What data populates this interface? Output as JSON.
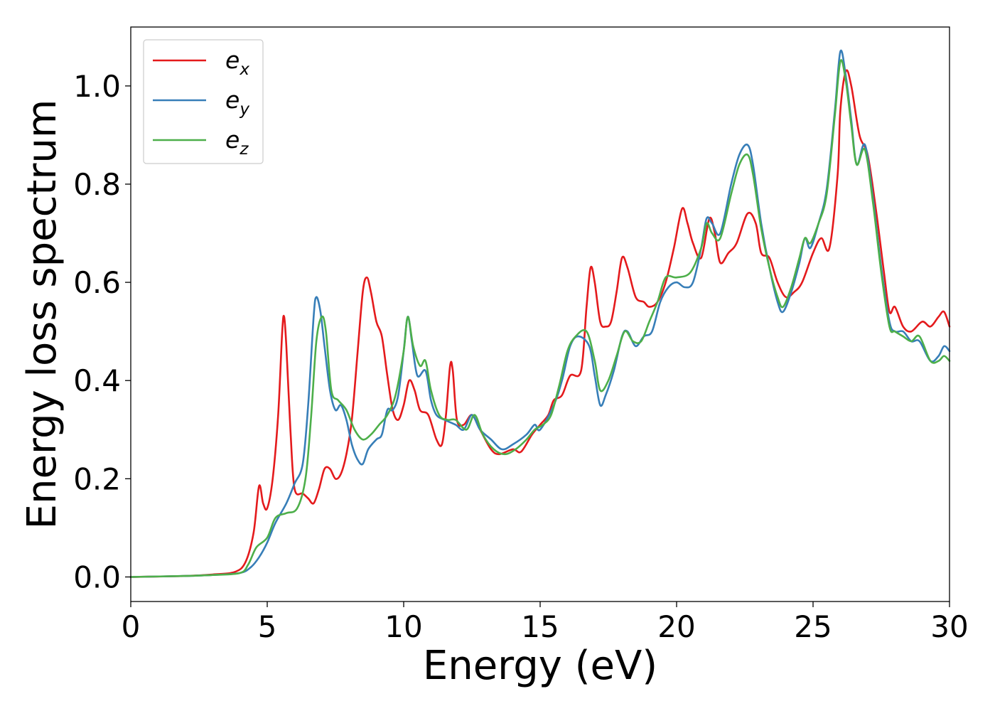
{
  "chart_data": {
    "type": "line",
    "title": "",
    "xlabel": "Energy (eV)",
    "ylabel": "Energy loss spectrum",
    "xlim": [
      0,
      30
    ],
    "ylim": [
      -0.05,
      1.12
    ],
    "xticks": [
      0,
      5,
      10,
      15,
      20,
      25,
      30
    ],
    "yticks": [
      0.0,
      0.2,
      0.4,
      0.6,
      0.8,
      1.0
    ],
    "xtick_labels": [
      "0",
      "5",
      "10",
      "15",
      "20",
      "25",
      "30"
    ],
    "ytick_labels": [
      "0.0",
      "0.2",
      "0.4",
      "0.6",
      "0.8",
      "1.0"
    ],
    "grid": false,
    "legend_position": "top-left",
    "series": [
      {
        "name": "e_x",
        "legend_base": "e",
        "legend_sub": "x",
        "color": "#e41a1c",
        "points": [
          [
            0,
            0
          ],
          [
            2,
            0.002
          ],
          [
            3,
            0.005
          ],
          [
            3.8,
            0.01
          ],
          [
            4.2,
            0.03
          ],
          [
            4.5,
            0.09
          ],
          [
            4.7,
            0.185
          ],
          [
            4.85,
            0.15
          ],
          [
            5.0,
            0.14
          ],
          [
            5.2,
            0.2
          ],
          [
            5.4,
            0.33
          ],
          [
            5.55,
            0.5
          ],
          [
            5.62,
            0.53
          ],
          [
            5.7,
            0.47
          ],
          [
            5.85,
            0.3
          ],
          [
            6.0,
            0.18
          ],
          [
            6.3,
            0.17
          ],
          [
            6.5,
            0.16
          ],
          [
            6.7,
            0.15
          ],
          [
            6.9,
            0.18
          ],
          [
            7.1,
            0.22
          ],
          [
            7.3,
            0.22
          ],
          [
            7.5,
            0.2
          ],
          [
            7.7,
            0.21
          ],
          [
            7.9,
            0.25
          ],
          [
            8.1,
            0.32
          ],
          [
            8.3,
            0.45
          ],
          [
            8.5,
            0.58
          ],
          [
            8.65,
            0.61
          ],
          [
            8.8,
            0.58
          ],
          [
            9.0,
            0.52
          ],
          [
            9.2,
            0.49
          ],
          [
            9.4,
            0.41
          ],
          [
            9.6,
            0.34
          ],
          [
            9.8,
            0.32
          ],
          [
            10.0,
            0.35
          ],
          [
            10.2,
            0.4
          ],
          [
            10.4,
            0.38
          ],
          [
            10.6,
            0.34
          ],
          [
            10.9,
            0.33
          ],
          [
            11.2,
            0.28
          ],
          [
            11.4,
            0.27
          ],
          [
            11.55,
            0.33
          ],
          [
            11.7,
            0.43
          ],
          [
            11.8,
            0.42
          ],
          [
            11.95,
            0.32
          ],
          [
            12.2,
            0.31
          ],
          [
            12.5,
            0.33
          ],
          [
            12.8,
            0.3
          ],
          [
            13.2,
            0.26
          ],
          [
            13.5,
            0.25
          ],
          [
            14.0,
            0.26
          ],
          [
            14.3,
            0.255
          ],
          [
            14.7,
            0.29
          ],
          [
            15.0,
            0.31
          ],
          [
            15.3,
            0.33
          ],
          [
            15.5,
            0.36
          ],
          [
            15.8,
            0.37
          ],
          [
            16.1,
            0.41
          ],
          [
            16.5,
            0.42
          ],
          [
            16.7,
            0.55
          ],
          [
            16.85,
            0.63
          ],
          [
            17.0,
            0.6
          ],
          [
            17.2,
            0.52
          ],
          [
            17.4,
            0.51
          ],
          [
            17.6,
            0.52
          ],
          [
            17.8,
            0.58
          ],
          [
            18.0,
            0.65
          ],
          [
            18.2,
            0.63
          ],
          [
            18.5,
            0.57
          ],
          [
            18.8,
            0.56
          ],
          [
            19.0,
            0.55
          ],
          [
            19.3,
            0.56
          ],
          [
            19.6,
            0.6
          ],
          [
            19.9,
            0.67
          ],
          [
            20.2,
            0.75
          ],
          [
            20.4,
            0.72
          ],
          [
            20.6,
            0.68
          ],
          [
            20.9,
            0.65
          ],
          [
            21.2,
            0.73
          ],
          [
            21.4,
            0.7
          ],
          [
            21.6,
            0.64
          ],
          [
            21.9,
            0.66
          ],
          [
            22.2,
            0.68
          ],
          [
            22.6,
            0.74
          ],
          [
            22.9,
            0.72
          ],
          [
            23.1,
            0.66
          ],
          [
            23.4,
            0.65
          ],
          [
            23.7,
            0.6
          ],
          [
            24.0,
            0.57
          ],
          [
            24.3,
            0.58
          ],
          [
            24.6,
            0.6
          ],
          [
            25.0,
            0.66
          ],
          [
            25.3,
            0.69
          ],
          [
            25.6,
            0.67
          ],
          [
            25.9,
            0.82
          ],
          [
            26.0,
            0.95
          ],
          [
            26.2,
            1.03
          ],
          [
            26.4,
            1.0
          ],
          [
            26.7,
            0.9
          ],
          [
            27.0,
            0.86
          ],
          [
            27.3,
            0.75
          ],
          [
            27.6,
            0.62
          ],
          [
            27.8,
            0.54
          ],
          [
            28.0,
            0.55
          ],
          [
            28.3,
            0.51
          ],
          [
            28.6,
            0.5
          ],
          [
            29.0,
            0.52
          ],
          [
            29.3,
            0.51
          ],
          [
            29.6,
            0.53
          ],
          [
            29.8,
            0.54
          ],
          [
            30.0,
            0.51
          ]
        ]
      },
      {
        "name": "e_y",
        "legend_base": "e",
        "legend_sub": "y",
        "color": "#377eb8",
        "points": [
          [
            0,
            0
          ],
          [
            2,
            0.002
          ],
          [
            3,
            0.004
          ],
          [
            4,
            0.008
          ],
          [
            4.4,
            0.02
          ],
          [
            4.7,
            0.04
          ],
          [
            5.0,
            0.07
          ],
          [
            5.3,
            0.11
          ],
          [
            5.7,
            0.15
          ],
          [
            6.0,
            0.19
          ],
          [
            6.3,
            0.23
          ],
          [
            6.5,
            0.35
          ],
          [
            6.7,
            0.53
          ],
          [
            6.8,
            0.57
          ],
          [
            6.95,
            0.54
          ],
          [
            7.1,
            0.47
          ],
          [
            7.3,
            0.38
          ],
          [
            7.5,
            0.34
          ],
          [
            7.7,
            0.35
          ],
          [
            7.9,
            0.32
          ],
          [
            8.1,
            0.27
          ],
          [
            8.3,
            0.24
          ],
          [
            8.5,
            0.23
          ],
          [
            8.7,
            0.26
          ],
          [
            9.0,
            0.28
          ],
          [
            9.2,
            0.29
          ],
          [
            9.4,
            0.34
          ],
          [
            9.6,
            0.34
          ],
          [
            9.8,
            0.37
          ],
          [
            10.0,
            0.46
          ],
          [
            10.15,
            0.53
          ],
          [
            10.3,
            0.48
          ],
          [
            10.5,
            0.41
          ],
          [
            10.8,
            0.42
          ],
          [
            11.0,
            0.36
          ],
          [
            11.2,
            0.33
          ],
          [
            11.5,
            0.32
          ],
          [
            11.9,
            0.31
          ],
          [
            12.2,
            0.3
          ],
          [
            12.5,
            0.33
          ],
          [
            12.8,
            0.3
          ],
          [
            13.2,
            0.28
          ],
          [
            13.6,
            0.26
          ],
          [
            14.0,
            0.27
          ],
          [
            14.5,
            0.29
          ],
          [
            14.8,
            0.31
          ],
          [
            15.0,
            0.3
          ],
          [
            15.5,
            0.35
          ],
          [
            15.8,
            0.4
          ],
          [
            16.1,
            0.47
          ],
          [
            16.4,
            0.49
          ],
          [
            16.8,
            0.47
          ],
          [
            17.0,
            0.41
          ],
          [
            17.2,
            0.35
          ],
          [
            17.4,
            0.37
          ],
          [
            17.7,
            0.42
          ],
          [
            18.0,
            0.49
          ],
          [
            18.2,
            0.5
          ],
          [
            18.5,
            0.47
          ],
          [
            18.8,
            0.49
          ],
          [
            19.1,
            0.5
          ],
          [
            19.4,
            0.56
          ],
          [
            19.7,
            0.59
          ],
          [
            20.0,
            0.6
          ],
          [
            20.3,
            0.59
          ],
          [
            20.6,
            0.6
          ],
          [
            20.9,
            0.67
          ],
          [
            21.1,
            0.73
          ],
          [
            21.3,
            0.72
          ],
          [
            21.6,
            0.7
          ],
          [
            22.0,
            0.8
          ],
          [
            22.3,
            0.86
          ],
          [
            22.6,
            0.88
          ],
          [
            22.8,
            0.84
          ],
          [
            23.1,
            0.72
          ],
          [
            23.4,
            0.63
          ],
          [
            23.7,
            0.56
          ],
          [
            23.9,
            0.54
          ],
          [
            24.2,
            0.58
          ],
          [
            24.5,
            0.64
          ],
          [
            24.7,
            0.69
          ],
          [
            24.9,
            0.67
          ],
          [
            25.2,
            0.72
          ],
          [
            25.5,
            0.79
          ],
          [
            25.8,
            0.95
          ],
          [
            26.0,
            1.07
          ],
          [
            26.2,
            1.02
          ],
          [
            26.4,
            0.93
          ],
          [
            26.6,
            0.84
          ],
          [
            26.9,
            0.88
          ],
          [
            27.2,
            0.77
          ],
          [
            27.5,
            0.63
          ],
          [
            27.8,
            0.52
          ],
          [
            28.0,
            0.5
          ],
          [
            28.3,
            0.5
          ],
          [
            28.6,
            0.48
          ],
          [
            28.9,
            0.48
          ],
          [
            29.3,
            0.44
          ],
          [
            29.6,
            0.45
          ],
          [
            29.8,
            0.47
          ],
          [
            30.0,
            0.46
          ]
        ]
      },
      {
        "name": "e_z",
        "legend_base": "e",
        "legend_sub": "z",
        "color": "#4daf4a",
        "points": [
          [
            0,
            0
          ],
          [
            2,
            0.002
          ],
          [
            3,
            0.004
          ],
          [
            4,
            0.008
          ],
          [
            4.3,
            0.025
          ],
          [
            4.6,
            0.06
          ],
          [
            5.0,
            0.08
          ],
          [
            5.3,
            0.12
          ],
          [
            5.7,
            0.13
          ],
          [
            6.1,
            0.14
          ],
          [
            6.4,
            0.2
          ],
          [
            6.6,
            0.32
          ],
          [
            6.8,
            0.48
          ],
          [
            7.0,
            0.53
          ],
          [
            7.15,
            0.5
          ],
          [
            7.35,
            0.38
          ],
          [
            7.6,
            0.36
          ],
          [
            7.9,
            0.34
          ],
          [
            8.2,
            0.3
          ],
          [
            8.5,
            0.28
          ],
          [
            8.8,
            0.29
          ],
          [
            9.1,
            0.31
          ],
          [
            9.4,
            0.33
          ],
          [
            9.7,
            0.37
          ],
          [
            10.0,
            0.46
          ],
          [
            10.15,
            0.53
          ],
          [
            10.35,
            0.47
          ],
          [
            10.6,
            0.43
          ],
          [
            10.8,
            0.44
          ],
          [
            11.0,
            0.38
          ],
          [
            11.3,
            0.33
          ],
          [
            11.6,
            0.32
          ],
          [
            11.9,
            0.32
          ],
          [
            12.3,
            0.3
          ],
          [
            12.6,
            0.33
          ],
          [
            12.9,
            0.29
          ],
          [
            13.3,
            0.26
          ],
          [
            13.7,
            0.25
          ],
          [
            14.1,
            0.26
          ],
          [
            14.5,
            0.28
          ],
          [
            14.8,
            0.3
          ],
          [
            15.1,
            0.31
          ],
          [
            15.4,
            0.33
          ],
          [
            15.7,
            0.39
          ],
          [
            16.0,
            0.46
          ],
          [
            16.3,
            0.49
          ],
          [
            16.7,
            0.5
          ],
          [
            17.0,
            0.44
          ],
          [
            17.2,
            0.38
          ],
          [
            17.5,
            0.4
          ],
          [
            17.8,
            0.45
          ],
          [
            18.1,
            0.5
          ],
          [
            18.4,
            0.48
          ],
          [
            18.7,
            0.48
          ],
          [
            19.0,
            0.52
          ],
          [
            19.3,
            0.56
          ],
          [
            19.6,
            0.61
          ],
          [
            20.0,
            0.61
          ],
          [
            20.5,
            0.62
          ],
          [
            20.9,
            0.67
          ],
          [
            21.1,
            0.72
          ],
          [
            21.3,
            0.7
          ],
          [
            21.6,
            0.69
          ],
          [
            22.0,
            0.78
          ],
          [
            22.3,
            0.84
          ],
          [
            22.6,
            0.86
          ],
          [
            22.8,
            0.82
          ],
          [
            23.1,
            0.71
          ],
          [
            23.4,
            0.63
          ],
          [
            23.7,
            0.57
          ],
          [
            23.9,
            0.55
          ],
          [
            24.2,
            0.59
          ],
          [
            24.5,
            0.65
          ],
          [
            24.7,
            0.69
          ],
          [
            24.9,
            0.68
          ],
          [
            25.2,
            0.72
          ],
          [
            25.5,
            0.78
          ],
          [
            25.8,
            0.94
          ],
          [
            26.0,
            1.05
          ],
          [
            26.2,
            1.01
          ],
          [
            26.4,
            0.92
          ],
          [
            26.6,
            0.84
          ],
          [
            26.9,
            0.87
          ],
          [
            27.2,
            0.76
          ],
          [
            27.5,
            0.62
          ],
          [
            27.8,
            0.51
          ],
          [
            28.0,
            0.5
          ],
          [
            28.3,
            0.49
          ],
          [
            28.6,
            0.48
          ],
          [
            28.9,
            0.49
          ],
          [
            29.3,
            0.44
          ],
          [
            29.6,
            0.44
          ],
          [
            29.8,
            0.45
          ],
          [
            30.0,
            0.44
          ]
        ]
      }
    ]
  }
}
